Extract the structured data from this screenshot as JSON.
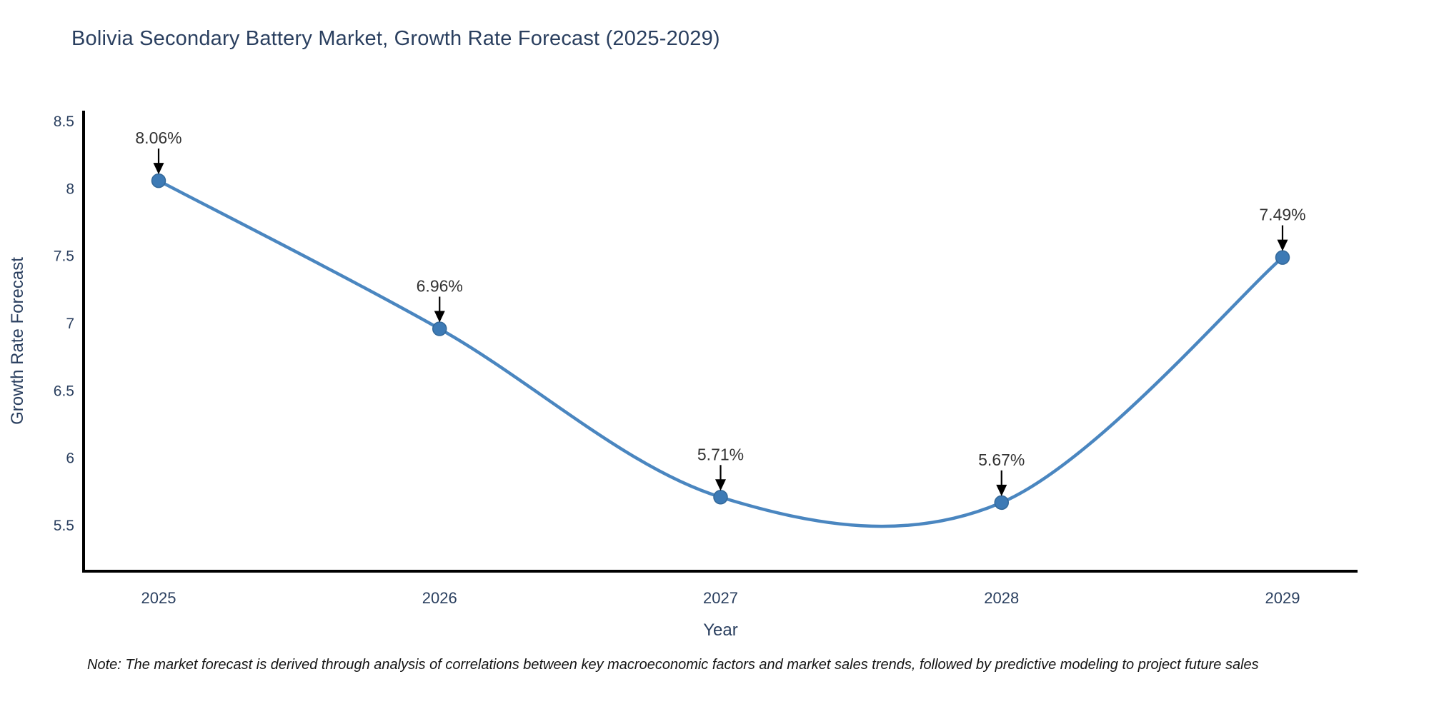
{
  "note": "Note: The market forecast is derived through analysis of correlations between key macroeconomic factors and market sales trends, followed by predictive modeling to project future sales",
  "chart_data": {
    "type": "line",
    "title": "Bolivia Secondary Battery Market, Growth Rate Forecast (2025-2029)",
    "xlabel": "Year",
    "ylabel": "Growth Rate Forecast",
    "categories": [
      "2025",
      "2026",
      "2027",
      "2028",
      "2029"
    ],
    "values": [
      8.06,
      6.96,
      5.71,
      5.67,
      7.49
    ],
    "point_labels": [
      "8.06%",
      "6.96%",
      "5.71%",
      "5.67%",
      "7.49%"
    ],
    "yticks": [
      5.5,
      6,
      6.5,
      7,
      7.5,
      8,
      8.5
    ],
    "ylim": [
      5.16,
      8.58
    ],
    "line_shape": "spline",
    "grid": false,
    "legend_position": "none",
    "colors": {
      "line": "#4a86c0",
      "marker_fill": "#3d7ab5",
      "marker_edge": "#336899",
      "axis_line": "#000000",
      "tick_text": "#2a3f5f",
      "axis_title_text": "#2a3f5f",
      "title_text": "#2a3f5f",
      "annotation_text": "#333333",
      "arrow": "#000000",
      "background": "#ffffff"
    }
  }
}
